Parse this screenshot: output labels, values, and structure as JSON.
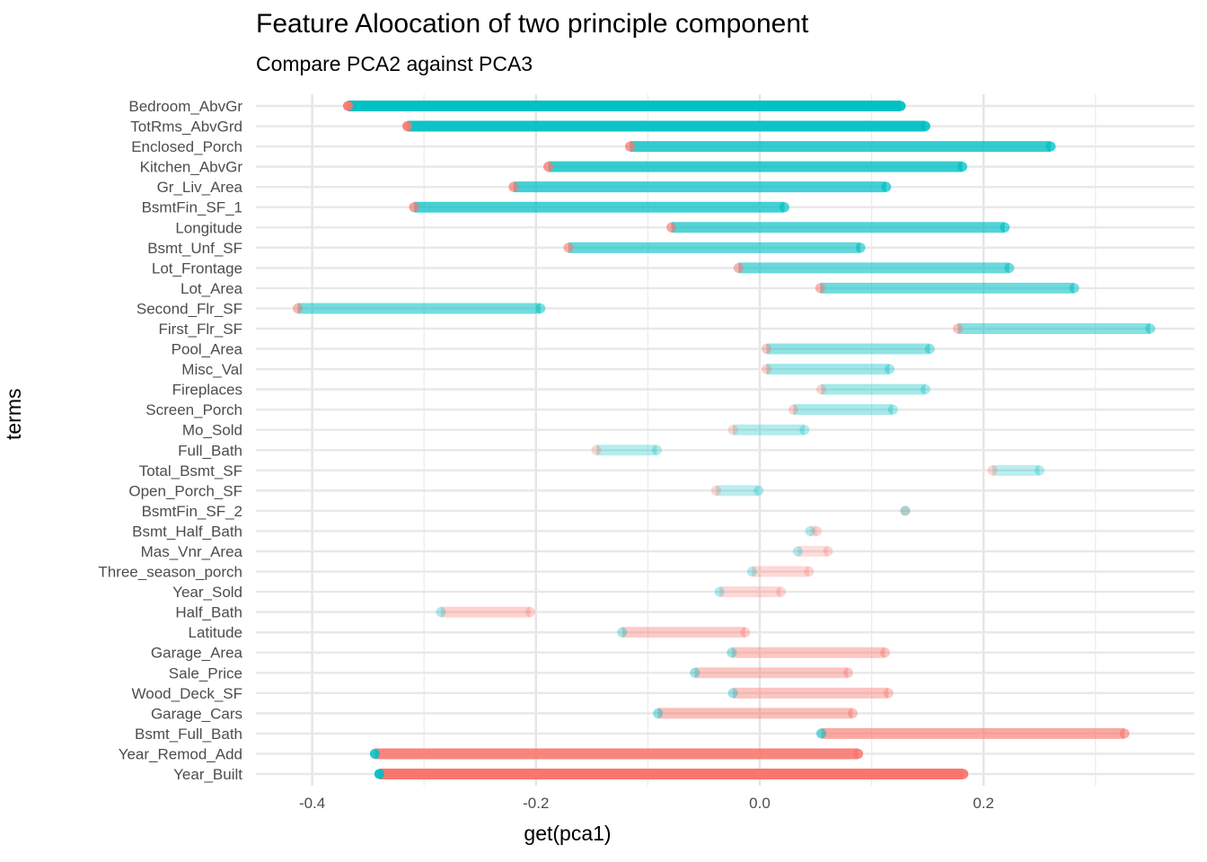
{
  "chart_data": {
    "type": "dumbbell",
    "title": "Feature Aloocation of two principle component",
    "subtitle": "Compare PCA2 against PCA3",
    "xlabel": "get(pca1)",
    "ylabel": "terms",
    "xlim": [
      -0.445,
      0.39
    ],
    "xticks": [
      -0.4,
      -0.2,
      0.0,
      0.2
    ],
    "xtick_labels": [
      "-0.4",
      "-0.2",
      "0.0",
      "0.2"
    ],
    "minor_xticks": [
      -0.3,
      -0.1,
      0.1,
      0.3
    ],
    "grid": true,
    "colors": {
      "pca2": "#F8766D",
      "pca3": "#00BFC4"
    },
    "series": [
      {
        "name": "pca2",
        "color": "#F8766D"
      },
      {
        "name": "pca3",
        "color": "#00BFC4"
      }
    ],
    "categories": [
      "Bedroom_AbvGr",
      "TotRms_AbvGrd",
      "Enclosed_Porch",
      "Kitchen_AbvGr",
      "Gr_Liv_Area",
      "BsmtFin_SF_1",
      "Longitude",
      "Bsmt_Unf_SF",
      "Lot_Frontage",
      "Lot_Area",
      "Second_Flr_SF",
      "First_Flr_SF",
      "Pool_Area",
      "Misc_Val",
      "Fireplaces",
      "Screen_Porch",
      "Mo_Sold",
      "Full_Bath",
      "Total_Bsmt_SF",
      "Open_Porch_SF",
      "BsmtFin_SF_2",
      "Bsmt_Half_Bath",
      "Mas_Vnr_Area",
      "Three_season_porch",
      "Year_Sold",
      "Half_Bath",
      "Latitude",
      "Garage_Area",
      "Sale_Price",
      "Wood_Deck_SF",
      "Garage_Cars",
      "Bsmt_Full_Bath",
      "Year_Remod_Add",
      "Year_Built"
    ],
    "pca2": [
      -0.368,
      -0.315,
      -0.116,
      -0.189,
      -0.22,
      -0.309,
      -0.079,
      -0.171,
      -0.019,
      0.054,
      -0.413,
      0.177,
      0.006,
      0.006,
      0.055,
      0.03,
      -0.024,
      -0.146,
      0.208,
      -0.039,
      0.13,
      0.051,
      0.061,
      0.044,
      0.019,
      -0.205,
      -0.013,
      0.112,
      0.079,
      0.115,
      0.083,
      0.326,
      0.088,
      0.182
    ],
    "pca3": [
      0.126,
      0.148,
      0.26,
      0.181,
      0.113,
      0.022,
      0.219,
      0.09,
      0.223,
      0.281,
      -0.196,
      0.349,
      0.152,
      0.116,
      0.148,
      0.119,
      0.04,
      -0.092,
      0.25,
      -0.001,
      0.13,
      0.045,
      0.034,
      -0.007,
      -0.036,
      -0.285,
      -0.123,
      -0.025,
      -0.058,
      -0.024,
      -0.091,
      0.055,
      -0.344,
      -0.34
    ]
  }
}
